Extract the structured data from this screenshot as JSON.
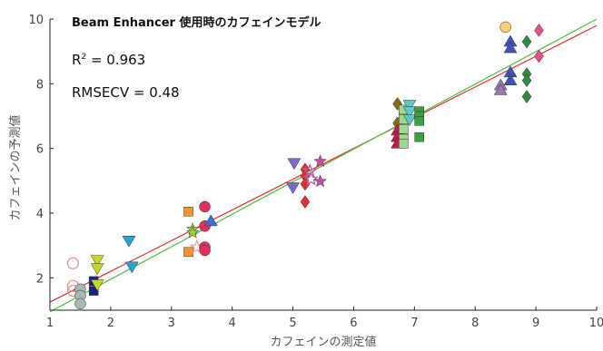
{
  "chart_data": {
    "type": "scatter",
    "title": "Beam Enhancer 使用時のカフェインモデル",
    "xlabel": "カフェインの測定値",
    "ylabel": "カフェインの予測値",
    "xlim": [
      1,
      10
    ],
    "ylim": [
      1,
      10
    ],
    "xticks": [
      1,
      2,
      3,
      4,
      5,
      6,
      7,
      8,
      9,
      10
    ],
    "yticks": [
      2,
      4,
      6,
      8,
      10
    ],
    "annotations": {
      "r2_label": "R",
      "r2_sup": "2",
      "r2_value": " = 0.963",
      "rmsecv": "RMSECV = 0.48"
    },
    "fit_lines": [
      {
        "color": "#e03030",
        "points": [
          [
            1,
            1.25
          ],
          [
            10,
            9.8
          ]
        ]
      },
      {
        "color": "#4fbf3f",
        "points": [
          [
            1,
            0.95
          ],
          [
            10,
            10.0
          ]
        ]
      }
    ],
    "groups": [
      {
        "marker": "circle-open",
        "color": "#e89090",
        "points": [
          [
            1.38,
            2.45
          ],
          [
            1.38,
            1.75
          ],
          [
            1.38,
            1.6
          ]
        ]
      },
      {
        "marker": "circle",
        "color": "#a8b8b0",
        "points": [
          [
            1.5,
            1.65
          ],
          [
            1.5,
            1.45
          ],
          [
            1.5,
            1.2
          ]
        ]
      },
      {
        "marker": "square",
        "color": "#1a237e",
        "points": [
          [
            1.72,
            1.9
          ],
          [
            1.72,
            1.6
          ]
        ]
      },
      {
        "marker": "triangle-down",
        "color": "#c6d81e",
        "points": [
          [
            1.78,
            2.55
          ],
          [
            1.78,
            2.3
          ],
          [
            1.78,
            1.8
          ]
        ]
      },
      {
        "marker": "triangle-down",
        "color": "#29a3d0",
        "points": [
          [
            2.3,
            3.15
          ],
          [
            2.35,
            2.35
          ]
        ]
      },
      {
        "marker": "square",
        "color": "#f0952b",
        "points": [
          [
            3.28,
            4.05
          ],
          [
            3.28,
            2.8
          ]
        ]
      },
      {
        "marker": "star",
        "color": "#9bcf3a",
        "points": [
          [
            3.35,
            3.5
          ],
          [
            3.35,
            3.4
          ]
        ]
      },
      {
        "marker": "star-open",
        "color": "#e8a0a0",
        "points": [
          [
            3.42,
            2.95
          ]
        ]
      },
      {
        "marker": "circle",
        "color": "#e03060",
        "points": [
          [
            3.55,
            4.2
          ],
          [
            3.55,
            3.6
          ],
          [
            3.55,
            2.95
          ],
          [
            3.55,
            2.85
          ]
        ]
      },
      {
        "marker": "triangle",
        "color": "#3f6fd0",
        "points": [
          [
            3.65,
            3.75
          ]
        ]
      },
      {
        "marker": "triangle-down",
        "color": "#7b68c8",
        "points": [
          [
            5.02,
            5.55
          ],
          [
            5.0,
            4.8
          ]
        ]
      },
      {
        "marker": "diamond",
        "color": "#e03030",
        "points": [
          [
            5.2,
            5.35
          ],
          [
            5.2,
            5.15
          ],
          [
            5.2,
            4.9
          ],
          [
            5.2,
            4.35
          ]
        ]
      },
      {
        "marker": "star-open",
        "color": "#b060b0",
        "points": [
          [
            5.28,
            5.3
          ],
          [
            5.3,
            5.05
          ]
        ]
      },
      {
        "marker": "star",
        "color": "#c050a0",
        "points": [
          [
            5.45,
            5.6
          ],
          [
            5.45,
            4.98
          ]
        ]
      },
      {
        "marker": "diamond",
        "color": "#8b6914",
        "points": [
          [
            6.72,
            7.38
          ],
          [
            6.72,
            6.78
          ]
        ]
      },
      {
        "marker": "triangle",
        "color": "#c01850",
        "points": [
          [
            6.72,
            6.55
          ],
          [
            6.72,
            6.35
          ],
          [
            6.72,
            6.15
          ]
        ]
      },
      {
        "marker": "square",
        "color": "#a0d890",
        "points": [
          [
            6.82,
            7.2
          ],
          [
            6.82,
            6.9
          ],
          [
            6.82,
            6.6
          ],
          [
            6.82,
            6.3
          ],
          [
            6.82,
            6.15
          ]
        ]
      },
      {
        "marker": "triangle-down",
        "color": "#5cc8c8",
        "points": [
          [
            6.92,
            7.35
          ],
          [
            6.92,
            7.15
          ],
          [
            6.92,
            6.9
          ]
        ]
      },
      {
        "marker": "square",
        "color": "#3aa040",
        "points": [
          [
            7.08,
            7.15
          ],
          [
            7.08,
            7.0
          ],
          [
            7.08,
            6.85
          ],
          [
            7.08,
            6.35
          ]
        ]
      },
      {
        "marker": "circle",
        "color": "#f5d070",
        "points": [
          [
            8.5,
            9.75
          ]
        ]
      },
      {
        "marker": "triangle",
        "color": "#9a78b0",
        "points": [
          [
            8.42,
            7.95
          ],
          [
            8.42,
            7.8
          ]
        ]
      },
      {
        "marker": "triangle",
        "color": "#3f52b5",
        "points": [
          [
            8.58,
            9.3
          ],
          [
            8.58,
            9.1
          ],
          [
            8.58,
            8.35
          ],
          [
            8.58,
            8.1
          ]
        ]
      },
      {
        "marker": "diamond",
        "color": "#2e8b40",
        "points": [
          [
            8.85,
            9.3
          ],
          [
            8.85,
            8.3
          ],
          [
            8.85,
            8.1
          ],
          [
            8.85,
            7.6
          ]
        ]
      },
      {
        "marker": "diamond",
        "color": "#e0508a",
        "points": [
          [
            9.05,
            9.65
          ],
          [
            9.05,
            8.85
          ]
        ]
      }
    ]
  }
}
